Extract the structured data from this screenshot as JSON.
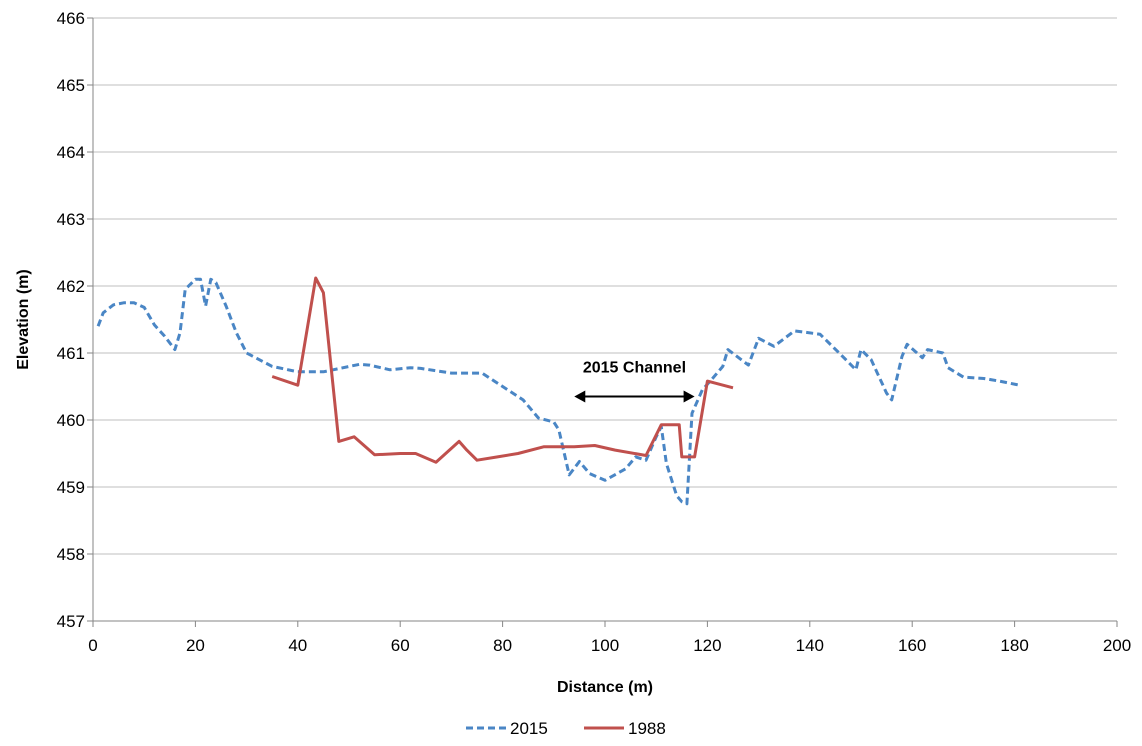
{
  "chart_data": {
    "type": "line",
    "title": "",
    "xlabel": "Distance (m)",
    "ylabel": "Elevation (m)",
    "xlim": [
      0,
      200
    ],
    "ylim": [
      457,
      466
    ],
    "xticks": [
      0,
      20,
      40,
      60,
      80,
      100,
      120,
      140,
      160,
      180,
      200
    ],
    "yticks": [
      457,
      458,
      459,
      460,
      461,
      462,
      463,
      464,
      465,
      466
    ],
    "grid": "horizontal",
    "legend_position": "bottom",
    "annotation": {
      "text": "2015 Channel",
      "arrow_from": [
        94,
        460.35
      ],
      "arrow_to": [
        117.5,
        460.35
      ]
    },
    "series": [
      {
        "name": "2015",
        "color": "#4a86c5",
        "style": "dashed",
        "points": [
          [
            1,
            461.4
          ],
          [
            2,
            461.6
          ],
          [
            4,
            461.72
          ],
          [
            6,
            461.75
          ],
          [
            8,
            461.75
          ],
          [
            10,
            461.68
          ],
          [
            12,
            461.42
          ],
          [
            14,
            461.25
          ],
          [
            16,
            461.05
          ],
          [
            17,
            461.3
          ],
          [
            18,
            461.95
          ],
          [
            20,
            462.1
          ],
          [
            21,
            462.1
          ],
          [
            22,
            461.7
          ],
          [
            23,
            462.1
          ],
          [
            24,
            462.05
          ],
          [
            26,
            461.7
          ],
          [
            28,
            461.3
          ],
          [
            30,
            461.0
          ],
          [
            35,
            460.8
          ],
          [
            40,
            460.72
          ],
          [
            45,
            460.72
          ],
          [
            52,
            460.83
          ],
          [
            54,
            460.82
          ],
          [
            58,
            460.75
          ],
          [
            62,
            460.78
          ],
          [
            64,
            460.77
          ],
          [
            70,
            460.7
          ],
          [
            76,
            460.7
          ],
          [
            80,
            460.5
          ],
          [
            84,
            460.3
          ],
          [
            87,
            460.03
          ],
          [
            90,
            459.97
          ],
          [
            91,
            459.85
          ],
          [
            93,
            459.18
          ],
          [
            95,
            459.38
          ],
          [
            97,
            459.2
          ],
          [
            100,
            459.1
          ],
          [
            104,
            459.27
          ],
          [
            106,
            459.45
          ],
          [
            108,
            459.4
          ],
          [
            110,
            459.75
          ],
          [
            111,
            459.9
          ],
          [
            112,
            459.35
          ],
          [
            114,
            458.87
          ],
          [
            115,
            458.78
          ],
          [
            116,
            458.75
          ],
          [
            117,
            460.1
          ],
          [
            119,
            460.45
          ],
          [
            121,
            460.62
          ],
          [
            123,
            460.8
          ],
          [
            124,
            461.05
          ],
          [
            128,
            460.82
          ],
          [
            130,
            461.22
          ],
          [
            133,
            461.1
          ],
          [
            137,
            461.33
          ],
          [
            142,
            461.28
          ],
          [
            146,
            460.98
          ],
          [
            149,
            460.75
          ],
          [
            150,
            461.05
          ],
          [
            152,
            460.9
          ],
          [
            155,
            460.4
          ],
          [
            156,
            460.3
          ],
          [
            158,
            460.95
          ],
          [
            159,
            461.13
          ],
          [
            162,
            460.93
          ],
          [
            163,
            461.05
          ],
          [
            166,
            461.0
          ],
          [
            167,
            460.78
          ],
          [
            170,
            460.64
          ],
          [
            174,
            460.62
          ],
          [
            177,
            460.58
          ],
          [
            181,
            460.52
          ]
        ]
      },
      {
        "name": "1988",
        "color": "#c0504d",
        "style": "solid",
        "points": [
          [
            35,
            460.65
          ],
          [
            40,
            460.52
          ],
          [
            43.5,
            462.12
          ],
          [
            45,
            461.9
          ],
          [
            48,
            459.68
          ],
          [
            51,
            459.75
          ],
          [
            55,
            459.48
          ],
          [
            60,
            459.5
          ],
          [
            63,
            459.5
          ],
          [
            67,
            459.37
          ],
          [
            71.5,
            459.68
          ],
          [
            73,
            459.55
          ],
          [
            75,
            459.4
          ],
          [
            79,
            459.45
          ],
          [
            83,
            459.5
          ],
          [
            88,
            459.6
          ],
          [
            94,
            459.6
          ],
          [
            98,
            459.62
          ],
          [
            102,
            459.55
          ],
          [
            108,
            459.47
          ],
          [
            111,
            459.93
          ],
          [
            114.5,
            459.93
          ],
          [
            115,
            459.45
          ],
          [
            117.5,
            459.45
          ],
          [
            120,
            460.58
          ],
          [
            125,
            460.48
          ]
        ]
      }
    ]
  }
}
